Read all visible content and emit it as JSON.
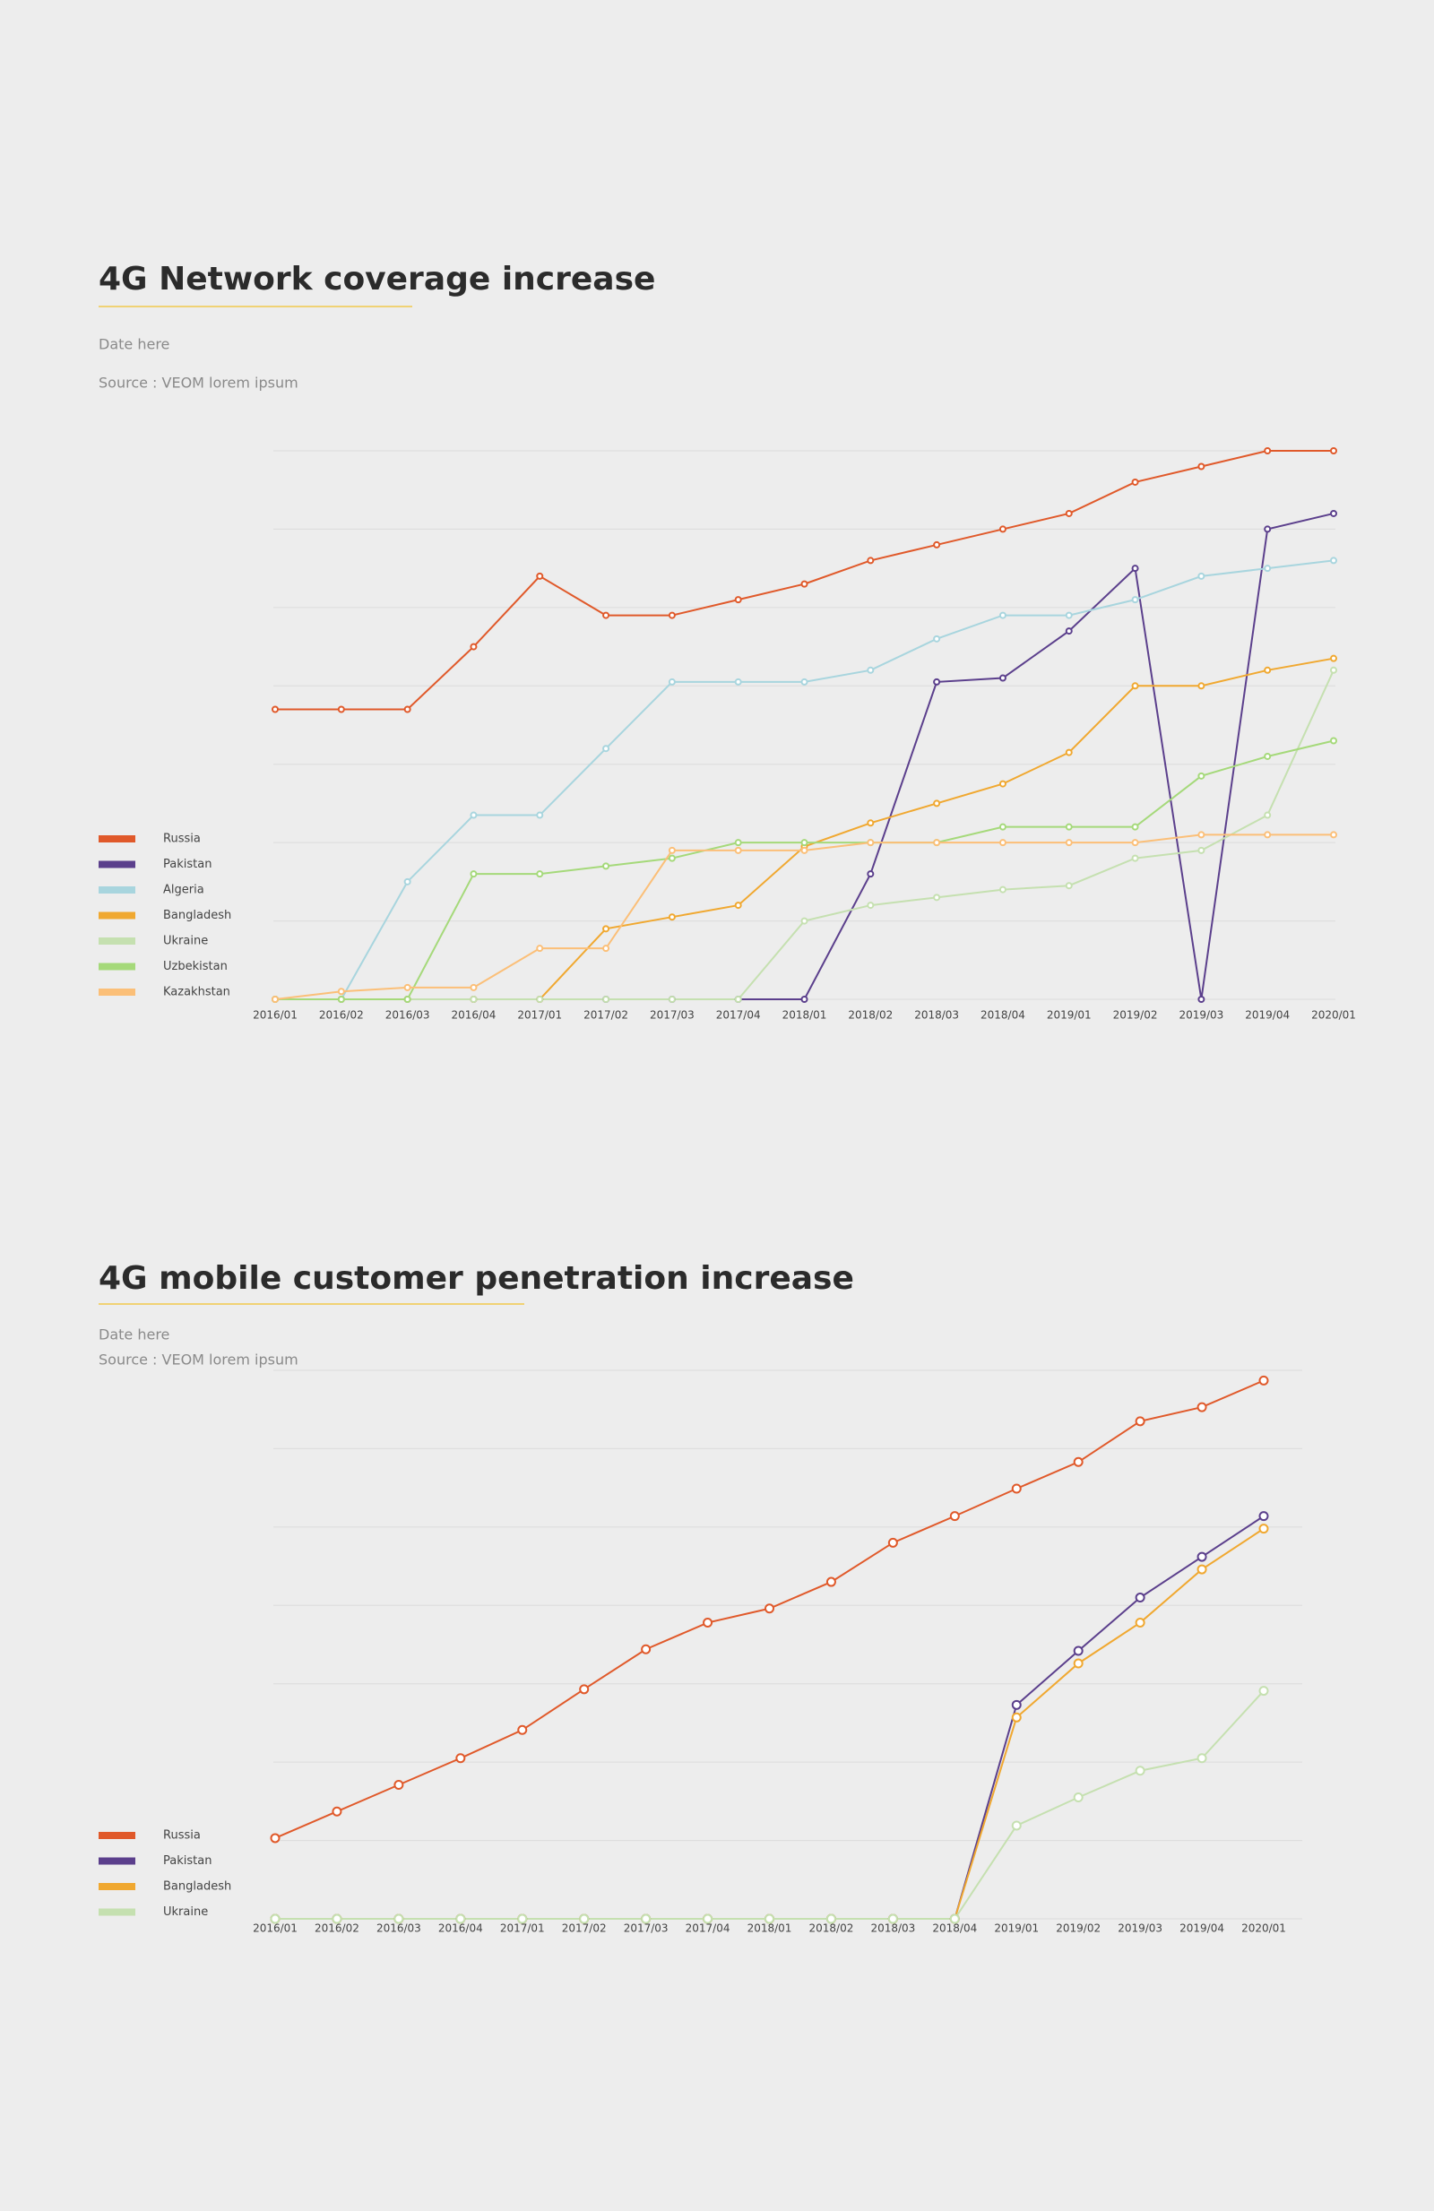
{
  "chart_data": [
    {
      "type": "line",
      "title": "4G Network coverage increase",
      "date": "Date here",
      "source": "Source : VEOM lorem ipsum",
      "categories": [
        "2016/01",
        "2016/02",
        "2016/03",
        "2016/04",
        "2017/01",
        "2017/02",
        "2017/03",
        "2017/04",
        "2018/01",
        "2018/02",
        "2018/03",
        "2018/04",
        "2019/01",
        "2019/02",
        "2019/03",
        "2019/04",
        "2020/01"
      ],
      "ylim": [
        0,
        7
      ],
      "yticks": [
        0,
        1,
        2,
        3,
        4,
        5,
        6,
        7
      ],
      "grid": true,
      "series": [
        {
          "name": "Russia",
          "color": "#e0592a",
          "values": [
            3.7,
            3.7,
            3.7,
            4.5,
            5.4,
            4.9,
            4.9,
            5.1,
            5.3,
            5.6,
            5.8,
            6.0,
            6.2,
            6.6,
            6.8,
            7.0,
            7.0
          ]
        },
        {
          "name": "Pakistan",
          "color": "#5b3f8c",
          "values": [
            0,
            0,
            0,
            0,
            0,
            0,
            0,
            0,
            0,
            1.6,
            4.05,
            4.1,
            4.7,
            5.5,
            0,
            6.0,
            6.2
          ]
        },
        {
          "name": "Algeria",
          "color": "#a8d5de",
          "values": [
            0,
            0,
            1.5,
            2.35,
            2.35,
            3.2,
            4.05,
            4.05,
            4.05,
            4.2,
            4.6,
            4.9,
            4.9,
            5.1,
            5.4,
            5.5,
            5.6
          ]
        },
        {
          "name": "Bangladesh",
          "color": "#f0a830",
          "values": [
            0,
            0,
            0,
            0,
            0,
            0.9,
            1.05,
            1.2,
            1.95,
            2.25,
            2.5,
            2.75,
            3.15,
            4.0,
            4.0,
            4.2,
            4.35
          ]
        },
        {
          "name": "Ukraine",
          "color": "#c5e0b0",
          "values": [
            0,
            0,
            0,
            0,
            0,
            0,
            0,
            0,
            1.0,
            1.2,
            1.3,
            1.4,
            1.45,
            1.8,
            1.9,
            2.35,
            4.2
          ]
        },
        {
          "name": "Uzbekistan",
          "color": "#a5d97a",
          "values": [
            0,
            0,
            0,
            1.6,
            1.6,
            1.7,
            1.8,
            2.0,
            2.0,
            2.0,
            2.0,
            2.2,
            2.2,
            2.2,
            2.85,
            3.1,
            3.3
          ]
        },
        {
          "name": "Kazakhstan",
          "color": "#fbbf78",
          "values": [
            0,
            0.1,
            0.15,
            0.15,
            0.65,
            0.65,
            1.9,
            1.9,
            1.9,
            2.0,
            2.0,
            2.0,
            2.0,
            2.0,
            2.1,
            2.1,
            2.1
          ]
        }
      ]
    },
    {
      "type": "line",
      "title": "4G mobile customer penetration increase",
      "date": "Date here",
      "source": "Source : VEOM lorem ipsum",
      "categories": [
        "2016/01",
        "2016/02",
        "2016/03",
        "2016/04",
        "2017/01",
        "2017/02",
        "2017/03",
        "2017/04",
        "2018/01",
        "2018/02",
        "2018/03",
        "2018/04",
        "2019/01",
        "2019/02",
        "2019/03",
        "2019/04",
        "2020/01"
      ],
      "ylim": [
        0,
        7
      ],
      "yticks": [
        0,
        1,
        2,
        3,
        4,
        5,
        6,
        7
      ],
      "grid": true,
      "series": [
        {
          "name": "Russia",
          "color": "#e0592a",
          "values": [
            1.03,
            1.37,
            1.71,
            2.05,
            2.41,
            2.93,
            3.44,
            3.78,
            3.96,
            4.3,
            4.8,
            5.14,
            5.49,
            5.83,
            6.35,
            6.53,
            6.87
          ]
        },
        {
          "name": "Pakistan",
          "color": "#5b3f8c",
          "values": [
            0,
            0,
            0,
            0,
            0,
            0,
            0,
            0,
            0,
            0,
            0,
            0,
            2.73,
            3.42,
            4.1,
            4.62,
            5.14
          ]
        },
        {
          "name": "Bangladesh",
          "color": "#f0a830",
          "values": [
            0,
            0,
            0,
            0,
            0,
            0,
            0,
            0,
            0,
            0,
            0,
            0,
            2.57,
            3.26,
            3.78,
            4.46,
            4.98
          ]
        },
        {
          "name": "Ukraine",
          "color": "#c5e0b0",
          "values": [
            0,
            0,
            0,
            0,
            0,
            0,
            0,
            0,
            0,
            0,
            0,
            0,
            1.19,
            1.55,
            1.89,
            2.05,
            2.91
          ]
        }
      ]
    }
  ]
}
